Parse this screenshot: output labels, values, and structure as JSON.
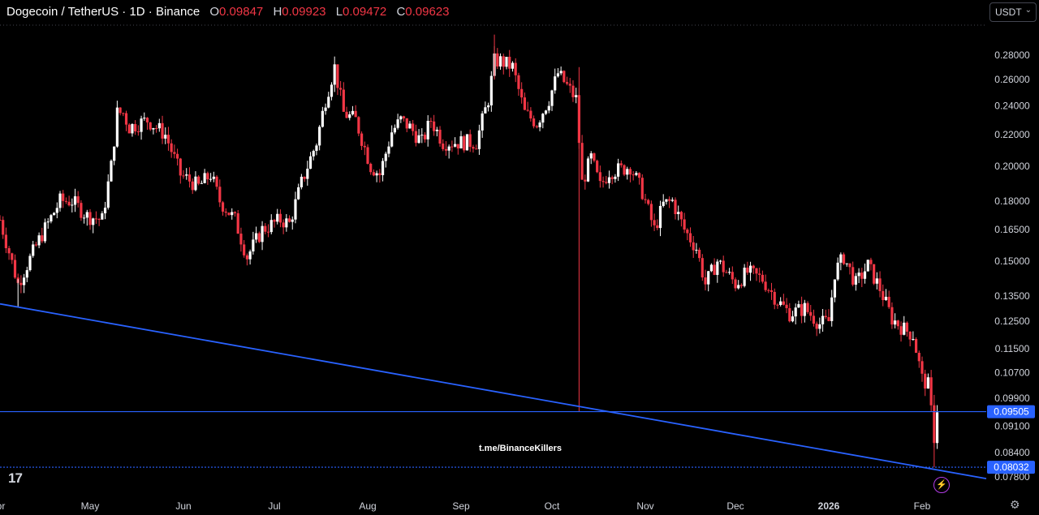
{
  "header": {
    "symbol": "Dogecoin / TetherUS · 1D · Binance",
    "open_label": "O",
    "open": "0.09847",
    "high_label": "H",
    "high": "0.09923",
    "low_label": "L",
    "low": "0.09472",
    "close_label": "C",
    "close": "0.09623"
  },
  "currency_select": {
    "value": "USDT",
    "icon": "chevron-down-icon"
  },
  "watermark": "t.me/BinanceKillers",
  "colors": {
    "up": "#ffffff",
    "down": "#f23645",
    "trendline": "#2962ff",
    "price_tag": "#2962ff",
    "background": "#000000"
  },
  "icons": {
    "logo": "tradingview-logo-icon",
    "bolt": "lightning-icon",
    "settings": "gear-icon"
  },
  "chart_data": {
    "type": "candlestick",
    "y_scale": "log",
    "y_ticks": [
      0.28,
      0.26,
      0.24,
      0.22,
      0.2,
      0.18,
      0.165,
      0.15,
      0.135,
      0.125,
      0.115,
      0.107,
      0.099,
      0.091,
      0.084,
      0.078
    ],
    "y_tick_labels": [
      "0.28000",
      "0.26000",
      "0.24000",
      "0.22000",
      "0.20000",
      "0.18000",
      "0.16500",
      "0.15000",
      "0.13500",
      "0.12500",
      "0.11500",
      "0.10700",
      "0.09900",
      "0.09100",
      "0.08400",
      "0.07800"
    ],
    "x_ticks": [
      "Apr",
      "May",
      "Jun",
      "Jul",
      "Aug",
      "Sep",
      "Oct",
      "Nov",
      "Dec",
      "2026",
      "Feb"
    ],
    "price_tags": [
      {
        "label": "0.09505",
        "value": 0.09505
      },
      {
        "label": "0.08032",
        "value": 0.08032
      }
    ],
    "horizontal_lines": [
      0.09505,
      0.08032
    ],
    "trendline": {
      "from": {
        "date": "2025-04-07",
        "price": 0.1305
      },
      "to": {
        "date": "2026-02-05",
        "price": 0.0798
      }
    },
    "grid": false,
    "anchors": [
      [
        "2025-04-01",
        0.17
      ],
      [
        "2025-04-07",
        0.14
      ],
      [
        "2025-04-14",
        0.16
      ],
      [
        "2025-04-21",
        0.18
      ],
      [
        "2025-04-25",
        0.18
      ],
      [
        "2025-04-30",
        0.172
      ],
      [
        "2025-05-05",
        0.17
      ],
      [
        "2025-05-08",
        0.2
      ],
      [
        "2025-05-10",
        0.235
      ],
      [
        "2025-05-12",
        0.235
      ],
      [
        "2025-05-14",
        0.225
      ],
      [
        "2025-05-20",
        0.23
      ],
      [
        "2025-05-23",
        0.225
      ],
      [
        "2025-05-26",
        0.22
      ],
      [
        "2025-05-31",
        0.195
      ],
      [
        "2025-06-06",
        0.188
      ],
      [
        "2025-06-10",
        0.195
      ],
      [
        "2025-06-13",
        0.18
      ],
      [
        "2025-06-18",
        0.17
      ],
      [
        "2025-06-22",
        0.152
      ],
      [
        "2025-06-27",
        0.165
      ],
      [
        "2025-07-03",
        0.17
      ],
      [
        "2025-07-06",
        0.168
      ],
      [
        "2025-07-10",
        0.19
      ],
      [
        "2025-07-12",
        0.2
      ],
      [
        "2025-07-15",
        0.215
      ],
      [
        "2025-07-18",
        0.245
      ],
      [
        "2025-07-21",
        0.27
      ],
      [
        "2025-07-24",
        0.235
      ],
      [
        "2025-07-28",
        0.23
      ],
      [
        "2025-08-02",
        0.2
      ],
      [
        "2025-08-05",
        0.195
      ],
      [
        "2025-08-09",
        0.222
      ],
      [
        "2025-08-12",
        0.23
      ],
      [
        "2025-08-15",
        0.225
      ],
      [
        "2025-08-19",
        0.215
      ],
      [
        "2025-08-22",
        0.23
      ],
      [
        "2025-08-26",
        0.215
      ],
      [
        "2025-09-01",
        0.215
      ],
      [
        "2025-09-06",
        0.215
      ],
      [
        "2025-09-10",
        0.245
      ],
      [
        "2025-09-12",
        0.275
      ],
      [
        "2025-09-14",
        0.275
      ],
      [
        "2025-09-18",
        0.27
      ],
      [
        "2025-09-22",
        0.235
      ],
      [
        "2025-09-26",
        0.228
      ],
      [
        "2025-09-30",
        0.245
      ],
      [
        "2025-10-03",
        0.265
      ],
      [
        "2025-10-06",
        0.255
      ],
      [
        "2025-10-09",
        0.245
      ],
      [
        "2025-10-11",
        0.19
      ],
      [
        "2025-10-14",
        0.205
      ],
      [
        "2025-10-17",
        0.188
      ],
      [
        "2025-10-20",
        0.197
      ],
      [
        "2025-10-24",
        0.198
      ],
      [
        "2025-10-27",
        0.2
      ],
      [
        "2025-10-31",
        0.185
      ],
      [
        "2025-11-04",
        0.165
      ],
      [
        "2025-11-07",
        0.178
      ],
      [
        "2025-11-10",
        0.18
      ],
      [
        "2025-11-14",
        0.165
      ],
      [
        "2025-11-18",
        0.156
      ],
      [
        "2025-11-21",
        0.14
      ],
      [
        "2025-11-25",
        0.15
      ],
      [
        "2025-12-01",
        0.14
      ],
      [
        "2025-12-05",
        0.145
      ],
      [
        "2025-12-10",
        0.142
      ],
      [
        "2025-12-15",
        0.133
      ],
      [
        "2025-12-19",
        0.128
      ],
      [
        "2025-12-24",
        0.13
      ],
      [
        "2025-12-29",
        0.124
      ],
      [
        "2026-01-01",
        0.125
      ],
      [
        "2026-01-03",
        0.145
      ],
      [
        "2026-01-06",
        0.152
      ],
      [
        "2026-01-10",
        0.14
      ],
      [
        "2026-01-14",
        0.148
      ],
      [
        "2026-01-18",
        0.138
      ],
      [
        "2026-01-22",
        0.126
      ],
      [
        "2026-01-26",
        0.122
      ],
      [
        "2026-01-29",
        0.12
      ],
      [
        "2026-02-01",
        0.105
      ],
      [
        "2026-02-03",
        0.103
      ],
      [
        "2026-02-05",
        0.088
      ],
      [
        "2026-02-06",
        0.096
      ]
    ],
    "wicks": [
      [
        "2025-04-07",
        0.1305,
        0.142
      ],
      [
        "2025-10-10",
        0.095,
        0.27
      ],
      [
        "2025-09-12",
        0.26,
        0.298
      ],
      [
        "2026-02-05",
        0.0803,
        0.1
      ]
    ]
  }
}
